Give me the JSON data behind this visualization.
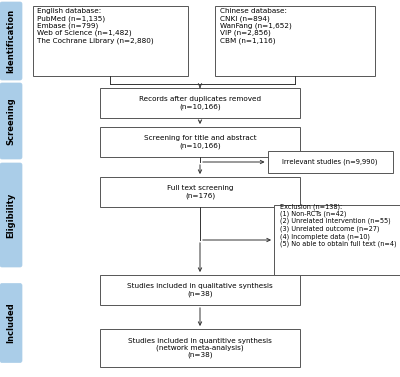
{
  "bg_color": "#ffffff",
  "box_facecolor": "#ffffff",
  "box_edge": "#555555",
  "side_label_bg": "#aacde8",
  "arrow_color": "#333333",
  "font_size": 5.2,
  "side_font_size": 6.0,
  "english_db": "English database:\nPubMed (n=1,135)\nEmbase (n=799)\nWeb of Science (n=1,482)\nThe Cochrane Library (n=2,880)",
  "chinese_db": "Chinese database:\nCNKI (n=894)\nWanFang (n=1,652)\nVIP (n=2,856)\nCBM (n=1,116)",
  "box1": "Records after duplicates removed\n(n=10,166)",
  "box2": "Screening for title and abstract\n(n=10,166)",
  "box3": "Full text screening\n(n=176)",
  "box4": "Studies included in qualitative synthesis\n(n=38)",
  "box5": "Studies included in quantitive synthesis\n(network meta-analysis)\n(n=38)",
  "side_box1": "Irrelevant studies (n=9,990)",
  "side_box2": "Exclusion (n=138):\n(1) Non-RCTs (n=42)\n(2) Unrelated intervention (n=55)\n(3) Unrelated outcome (n=27)\n(4) Incomplete data (n=10)\n(5) No able to obtain full text (n=4)",
  "side_labels": [
    "Identification",
    "Screening",
    "Eligibility",
    "Included"
  ]
}
